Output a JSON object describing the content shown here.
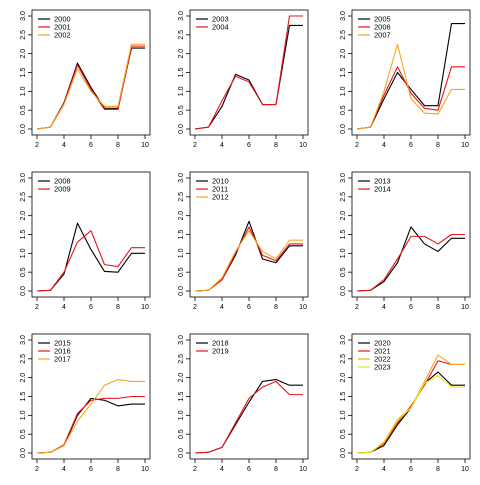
{
  "chart_data": {
    "type": "line",
    "layout": "3x3 grid of small-multiple line charts",
    "shared_x_ticks": [
      2,
      4,
      6,
      8,
      10
    ],
    "shared_y_ticks": [
      "0.0",
      "0.5",
      "1.0",
      "1.5",
      "2.0",
      "2.5",
      "3.0"
    ],
    "xlim": [
      2,
      10
    ],
    "ylim": [
      0,
      3.0
    ],
    "legend_placement": "top-left",
    "grid": false,
    "colors": {
      "black": "#000000",
      "red": "#e8141c",
      "orange": "#f5a623",
      "yellow": "#e6e61a"
    },
    "x": [
      2,
      3,
      4,
      5,
      6,
      7,
      8,
      9,
      10
    ],
    "panels": [
      {
        "series": [
          {
            "name": "2000",
            "color": "#000000",
            "values": [
              0.0,
              0.05,
              0.7,
              1.75,
              1.1,
              0.55,
              0.55,
              2.15,
              2.15
            ]
          },
          {
            "name": "2001",
            "color": "#e8141c",
            "values": [
              0.0,
              0.05,
              0.68,
              1.7,
              1.05,
              0.52,
              0.52,
              2.2,
              2.2
            ]
          },
          {
            "name": "2002",
            "color": "#f5a623",
            "values": [
              0.0,
              0.05,
              0.65,
              1.6,
              1.0,
              0.6,
              0.6,
              2.25,
              2.25
            ]
          }
        ]
      },
      {
        "series": [
          {
            "name": "2003",
            "color": "#000000",
            "values": [
              0.0,
              0.05,
              0.6,
              1.45,
              1.3,
              0.65,
              0.65,
              2.75,
              2.75
            ]
          },
          {
            "name": "2004",
            "color": "#e8141c",
            "values": [
              0.0,
              0.05,
              0.75,
              1.4,
              1.25,
              0.65,
              0.65,
              3.0,
              3.0
            ]
          }
        ]
      },
      {
        "series": [
          {
            "name": "2005",
            "color": "#000000",
            "values": [
              0.0,
              0.05,
              0.8,
              1.5,
              1.05,
              0.62,
              0.62,
              2.8,
              2.8
            ]
          },
          {
            "name": "2006",
            "color": "#e8141c",
            "values": [
              0.0,
              0.05,
              0.9,
              1.65,
              0.95,
              0.55,
              0.5,
              1.65,
              1.65
            ]
          },
          {
            "name": "2007",
            "color": "#f5a623",
            "values": [
              0.0,
              0.05,
              1.0,
              2.25,
              0.8,
              0.42,
              0.4,
              1.05,
              1.05
            ]
          }
        ]
      },
      {
        "series": [
          {
            "name": "2008",
            "color": "#000000",
            "values": [
              0.0,
              0.02,
              0.45,
              1.8,
              1.1,
              0.52,
              0.5,
              1.0,
              1.0
            ]
          },
          {
            "name": "2009",
            "color": "#e8141c",
            "values": [
              0.0,
              0.02,
              0.5,
              1.3,
              1.6,
              0.7,
              0.65,
              1.15,
              1.15
            ]
          }
        ]
      },
      {
        "series": [
          {
            "name": "2010",
            "color": "#000000",
            "values": [
              0.0,
              0.02,
              0.3,
              0.95,
              1.85,
              0.85,
              0.75,
              1.2,
              1.2
            ]
          },
          {
            "name": "2011",
            "color": "#e8141c",
            "values": [
              0.0,
              0.02,
              0.3,
              1.0,
              1.7,
              0.95,
              0.8,
              1.25,
              1.25
            ]
          },
          {
            "name": "2012",
            "color": "#f5a623",
            "values": [
              0.0,
              0.02,
              0.35,
              1.05,
              1.6,
              1.05,
              0.85,
              1.35,
              1.35
            ]
          }
        ]
      },
      {
        "series": [
          {
            "name": "2013",
            "color": "#000000",
            "values": [
              0.0,
              0.02,
              0.25,
              0.75,
              1.7,
              1.25,
              1.05,
              1.4,
              1.4
            ]
          },
          {
            "name": "2014",
            "color": "#e8141c",
            "values": [
              0.0,
              0.02,
              0.3,
              0.85,
              1.45,
              1.45,
              1.25,
              1.5,
              1.5
            ]
          }
        ]
      },
      {
        "series": [
          {
            "name": "2015",
            "color": "#000000",
            "values": [
              0.0,
              0.02,
              0.2,
              1.0,
              1.45,
              1.4,
              1.25,
              1.3,
              1.3
            ]
          },
          {
            "name": "2016",
            "color": "#e8141c",
            "values": [
              0.0,
              0.02,
              0.22,
              1.05,
              1.4,
              1.45,
              1.45,
              1.5,
              1.5
            ]
          },
          {
            "name": "2017",
            "color": "#f5a623",
            "values": [
              0.0,
              0.02,
              0.2,
              0.85,
              1.3,
              1.8,
              1.95,
              1.9,
              1.9
            ]
          }
        ]
      },
      {
        "series": [
          {
            "name": "2018",
            "color": "#000000",
            "values": [
              0.0,
              0.02,
              0.15,
              0.75,
              1.35,
              1.9,
              1.95,
              1.8,
              1.8
            ]
          },
          {
            "name": "2019",
            "color": "#e8141c",
            "values": [
              0.0,
              0.02,
              0.15,
              0.8,
              1.45,
              1.75,
              1.9,
              1.55,
              1.55
            ]
          }
        ]
      },
      {
        "series": [
          {
            "name": "2020",
            "color": "#000000",
            "values": [
              0.0,
              0.02,
              0.2,
              0.75,
              1.2,
              1.85,
              2.15,
              1.8,
              1.8
            ]
          },
          {
            "name": "2021",
            "color": "#e8141c",
            "values": [
              0.0,
              0.02,
              0.25,
              0.8,
              1.25,
              1.8,
              2.45,
              2.35,
              2.35
            ]
          },
          {
            "name": "2022",
            "color": "#f5a623",
            "values": [
              0.0,
              0.02,
              0.28,
              0.85,
              1.2,
              1.9,
              2.6,
              2.35,
              2.35
            ]
          },
          {
            "name": "2023",
            "color": "#e6e61a",
            "values": [
              0.0,
              0.02,
              0.3,
              0.9,
              1.2,
              1.85,
              2.05,
              1.75,
              1.75
            ]
          }
        ]
      }
    ]
  }
}
